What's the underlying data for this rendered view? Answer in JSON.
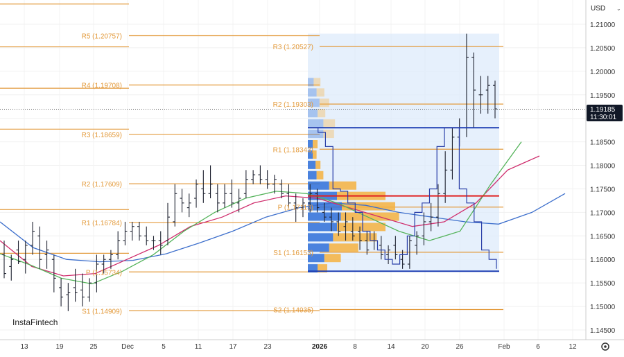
{
  "currency": "USD",
  "watermark": "InstaFintech",
  "current_price": {
    "value": "1.19185",
    "countdown": "11:30:01"
  },
  "colors": {
    "pivot": "#e39a3b",
    "sma_green": "#54b35a",
    "sma_pink": "#cf2e6d",
    "sma_blue": "#3d6fcc",
    "ohlc": "#1e2230",
    "vp_blue": "#2e6fd8",
    "vp_orange": "#f5b23f",
    "range_fill": "#dbeafb",
    "poc": "#e02020",
    "box": "#1f3fb3"
  },
  "chart_data": {
    "type": "ohlc",
    "y_axis": {
      "ticks": [
        "1.21000",
        "1.20500",
        "1.20000",
        "1.19500",
        "1.19000",
        "1.18500",
        "1.18000",
        "1.17500",
        "1.17000",
        "1.16500",
        "1.16000",
        "1.15500",
        "1.15000",
        "1.14500"
      ],
      "range": [
        1.1415,
        1.2155
      ]
    },
    "x_axis": {
      "ticks": [
        "13",
        "19",
        "25",
        "Dec",
        "5",
        "11",
        "17",
        "23",
        "2026",
        "8",
        "14",
        "20",
        "26",
        "Feb",
        "6",
        "12"
      ]
    },
    "pivots_monthly_prev": [
      {
        "label": "R5 (1.20757)",
        "value": 1.20757
      },
      {
        "label": "R4 (1.19708)",
        "value": 1.19708
      },
      {
        "label": "R3 (1.18659)",
        "value": 1.18659
      },
      {
        "label": "R2 (1.17609)",
        "value": 1.17609
      },
      {
        "label": "R1 (1.16784)",
        "value": 1.16784
      },
      {
        "label": "P (1.15734)",
        "value": 1.15734
      },
      {
        "label": "S1 (1.14909)",
        "value": 1.14909
      }
    ],
    "pivots_monthly_current": [
      {
        "label": "R3 (1.20527)",
        "value": 1.20527
      },
      {
        "label": "R2 (1.19303)",
        "value": 1.19303
      },
      {
        "label": "R1 (1.18343)",
        "value": 1.18343
      },
      {
        "label": "P (1.17113)",
        "value": 1.17113
      },
      {
        "label": "S1 (1.16153)",
        "value": 1.16153
      },
      {
        "label": "S2 (1.14935)",
        "value": 1.14935
      }
    ],
    "extra_levels_left": [
      1.2143,
      1.2052,
      1.1964,
      1.1877,
      1.1706,
      1.1613
    ],
    "ohlc_bars": [
      [
        1.161,
        1.164,
        1.156,
        1.157
      ],
      [
        1.1585,
        1.161,
        1.1555,
        1.16
      ],
      [
        1.162,
        1.164,
        1.159,
        1.1595
      ],
      [
        1.16,
        1.164,
        1.157,
        1.163
      ],
      [
        1.163,
        1.168,
        1.161,
        1.166
      ],
      [
        1.165,
        1.167,
        1.158,
        1.16
      ],
      [
        1.161,
        1.164,
        1.158,
        1.162
      ],
      [
        1.16,
        1.161,
        1.153,
        1.156
      ],
      [
        1.154,
        1.156,
        1.15,
        1.152
      ],
      [
        1.1525,
        1.155,
        1.149,
        1.153
      ],
      [
        1.154,
        1.158,
        1.151,
        1.153
      ],
      [
        1.1535,
        1.157,
        1.15,
        1.152
      ],
      [
        1.152,
        1.156,
        1.151,
        1.155
      ],
      [
        1.155,
        1.161,
        1.153,
        1.159
      ],
      [
        1.159,
        1.161,
        1.157,
        1.16
      ],
      [
        1.16,
        1.162,
        1.158,
        1.161
      ],
      [
        1.161,
        1.166,
        1.16,
        1.164
      ],
      [
        1.164,
        1.168,
        1.163,
        1.166
      ],
      [
        1.166,
        1.168,
        1.164,
        1.167
      ],
      [
        1.167,
        1.168,
        1.164,
        1.165
      ],
      [
        1.165,
        1.167,
        1.163,
        1.164
      ],
      [
        1.164,
        1.165,
        1.162,
        1.164
      ],
      [
        1.164,
        1.166,
        1.161,
        1.163
      ],
      [
        1.164,
        1.172,
        1.163,
        1.169
      ],
      [
        1.168,
        1.176,
        1.167,
        1.174
      ],
      [
        1.173,
        1.175,
        1.17,
        1.172
      ],
      [
        1.171,
        1.174,
        1.169,
        1.172
      ],
      [
        1.173,
        1.177,
        1.171,
        1.176
      ],
      [
        1.175,
        1.179,
        1.172,
        1.174
      ],
      [
        1.174,
        1.18,
        1.173,
        1.176
      ],
      [
        1.174,
        1.176,
        1.17,
        1.172
      ],
      [
        1.172,
        1.176,
        1.171,
        1.174
      ],
      [
        1.174,
        1.177,
        1.171,
        1.172
      ],
      [
        1.172,
        1.175,
        1.17,
        1.173
      ],
      [
        1.174,
        1.179,
        1.173,
        1.177
      ],
      [
        1.177,
        1.179,
        1.176,
        1.178
      ],
      [
        1.178,
        1.18,
        1.176,
        1.177
      ],
      [
        1.177,
        1.179,
        1.175,
        1.176
      ],
      [
        1.176,
        1.178,
        1.174,
        1.177
      ],
      [
        1.176,
        1.177,
        1.173,
        1.174
      ],
      [
        1.174,
        1.176,
        1.171,
        1.172
      ],
      [
        1.172,
        1.174,
        1.168,
        1.171
      ],
      [
        1.171,
        1.173,
        1.169,
        1.172
      ],
      [
        1.172,
        1.176,
        1.17,
        1.174
      ],
      [
        1.174,
        1.175,
        1.17,
        1.171
      ],
      [
        1.17,
        1.172,
        1.168,
        1.169
      ],
      [
        1.169,
        1.171,
        1.166,
        1.168
      ],
      [
        1.168,
        1.17,
        1.165,
        1.166
      ],
      [
        1.167,
        1.17,
        1.164,
        1.168
      ],
      [
        1.166,
        1.169,
        1.164,
        1.165
      ],
      [
        1.166,
        1.167,
        1.162,
        1.164
      ],
      [
        1.164,
        1.166,
        1.161,
        1.162
      ],
      [
        1.164,
        1.166,
        1.162,
        1.164
      ],
      [
        1.163,
        1.165,
        1.16,
        1.161
      ],
      [
        1.161,
        1.163,
        1.159,
        1.162
      ],
      [
        1.163,
        1.165,
        1.16,
        1.161
      ],
      [
        1.16,
        1.162,
        1.158,
        1.159
      ],
      [
        1.159,
        1.165,
        1.158,
        1.164
      ],
      [
        1.163,
        1.166,
        1.161,
        1.165
      ],
      [
        1.165,
        1.17,
        1.163,
        1.168
      ],
      [
        1.168,
        1.172,
        1.166,
        1.169
      ],
      [
        1.169,
        1.176,
        1.167,
        1.174
      ],
      [
        1.174,
        1.183,
        1.172,
        1.179
      ],
      [
        1.179,
        1.188,
        1.177,
        1.186
      ],
      [
        1.186,
        1.19,
        1.184,
        1.188
      ],
      [
        1.188,
        1.208,
        1.186,
        1.203
      ],
      [
        1.203,
        1.204,
        1.188,
        1.196
      ],
      [
        1.195,
        1.199,
        1.191,
        1.195
      ],
      [
        1.196,
        1.199,
        1.191,
        1.197
      ],
      [
        1.197,
        1.198,
        1.19,
        1.192
      ]
    ],
    "sma_green": [
      [
        1.1612,
        1.1612
      ],
      [
        1.1588,
        1.1602
      ],
      [
        1.156,
        1.157
      ],
      [
        1.1548,
        1.156
      ],
      [
        1.1575,
        1.157
      ],
      [
        1.161,
        1.158
      ],
      [
        1.166,
        1.161
      ],
      [
        1.17,
        1.165
      ],
      [
        1.173,
        1.169
      ],
      [
        1.1745,
        1.172
      ],
      [
        1.174,
        1.174
      ],
      [
        1.172,
        1.1745
      ],
      [
        1.169,
        1.174
      ],
      [
        1.166,
        1.1705
      ],
      [
        1.164,
        1.167
      ],
      [
        1.166,
        1.165
      ],
      [
        1.176,
        1.168
      ],
      [
        1.185,
        1.176
      ]
    ],
    "sma_pink": [
      [
        1.164,
        1.16
      ],
      [
        1.1585,
        1.159
      ],
      [
        1.1565,
        1.158
      ],
      [
        1.157,
        1.159
      ],
      [
        1.16,
        1.16
      ],
      [
        1.163,
        1.161
      ],
      [
        1.167,
        1.163
      ],
      [
        1.169,
        1.166
      ],
      [
        1.172,
        1.169
      ],
      [
        1.1735,
        1.172
      ],
      [
        1.173,
        1.1735
      ],
      [
        1.171,
        1.1735
      ],
      [
        1.169,
        1.172
      ],
      [
        1.167,
        1.17
      ],
      [
        1.168,
        1.169
      ],
      [
        1.172,
        1.17
      ],
      [
        1.179,
        1.173
      ],
      [
        1.182,
        1.178
      ]
    ],
    "sma_blue": [
      [
        1.168,
        1.168
      ],
      [
        1.1625,
        1.165
      ],
      [
        1.16,
        1.163
      ],
      [
        1.1595,
        1.162
      ],
      [
        1.1598,
        1.161
      ],
      [
        1.1612,
        1.161
      ],
      [
        1.1635,
        1.162
      ],
      [
        1.166,
        1.163
      ],
      [
        1.169,
        1.165
      ],
      [
        1.171,
        1.167
      ],
      [
        1.172,
        1.169
      ],
      [
        1.1715,
        1.1705
      ],
      [
        1.17,
        1.171
      ],
      [
        1.169,
        1.171
      ],
      [
        1.168,
        1.1705
      ],
      [
        1.1675,
        1.17
      ],
      [
        1.17,
        1.17
      ],
      [
        1.174,
        1.172
      ]
    ],
    "volume_profile": [
      [
        1.1977,
        0.06,
        0.07
      ],
      [
        1.1955,
        0.09,
        0.08
      ],
      [
        1.1933,
        0.12,
        0.1
      ],
      [
        1.1911,
        0.1,
        0.08
      ],
      [
        1.1889,
        0.16,
        0.12
      ],
      [
        1.1867,
        0.16,
        0.11
      ],
      [
        1.1845,
        0.05,
        0.05
      ],
      [
        1.1823,
        0.05,
        0.04
      ],
      [
        1.1801,
        0.08,
        0.05
      ],
      [
        1.1779,
        0.09,
        0.07
      ],
      [
        1.1757,
        0.22,
        0.28
      ],
      [
        1.1735,
        0.3,
        0.5
      ],
      [
        1.1713,
        0.35,
        0.55
      ],
      [
        1.1691,
        0.34,
        0.6
      ],
      [
        1.1669,
        0.3,
        0.5
      ],
      [
        1.1647,
        0.26,
        0.45
      ],
      [
        1.1625,
        0.22,
        0.3
      ],
      [
        1.1603,
        0.17,
        0.17
      ],
      [
        1.1581,
        0.1,
        0.1
      ]
    ],
    "levels": {
      "box_top": 1.188,
      "box_bottom": 1.1575,
      "poc": 1.1735,
      "value_area_top": 1.208,
      "value_area_bottom": 1.1575
    },
    "step_line": [
      [
        1.188
      ],
      [
        1.187
      ],
      [
        1.184
      ],
      [
        1.175
      ],
      [
        1.1745
      ],
      [
        1.172
      ],
      [
        1.17
      ],
      [
        1.166
      ],
      [
        1.164
      ],
      [
        1.162
      ],
      [
        1.16
      ],
      [
        1.159
      ],
      [
        1.161
      ],
      [
        1.165
      ],
      [
        1.17
      ],
      [
        1.172
      ],
      [
        1.175
      ],
      [
        1.184
      ],
      [
        1.188
      ],
      [
        1.188
      ],
      [
        1.175
      ],
      [
        1.172
      ],
      [
        1.168
      ],
      [
        1.162
      ],
      [
        1.16
      ],
      [
        1.158
      ]
    ],
    "extended_box_lines": [
      1.188,
      1.1575
    ]
  }
}
